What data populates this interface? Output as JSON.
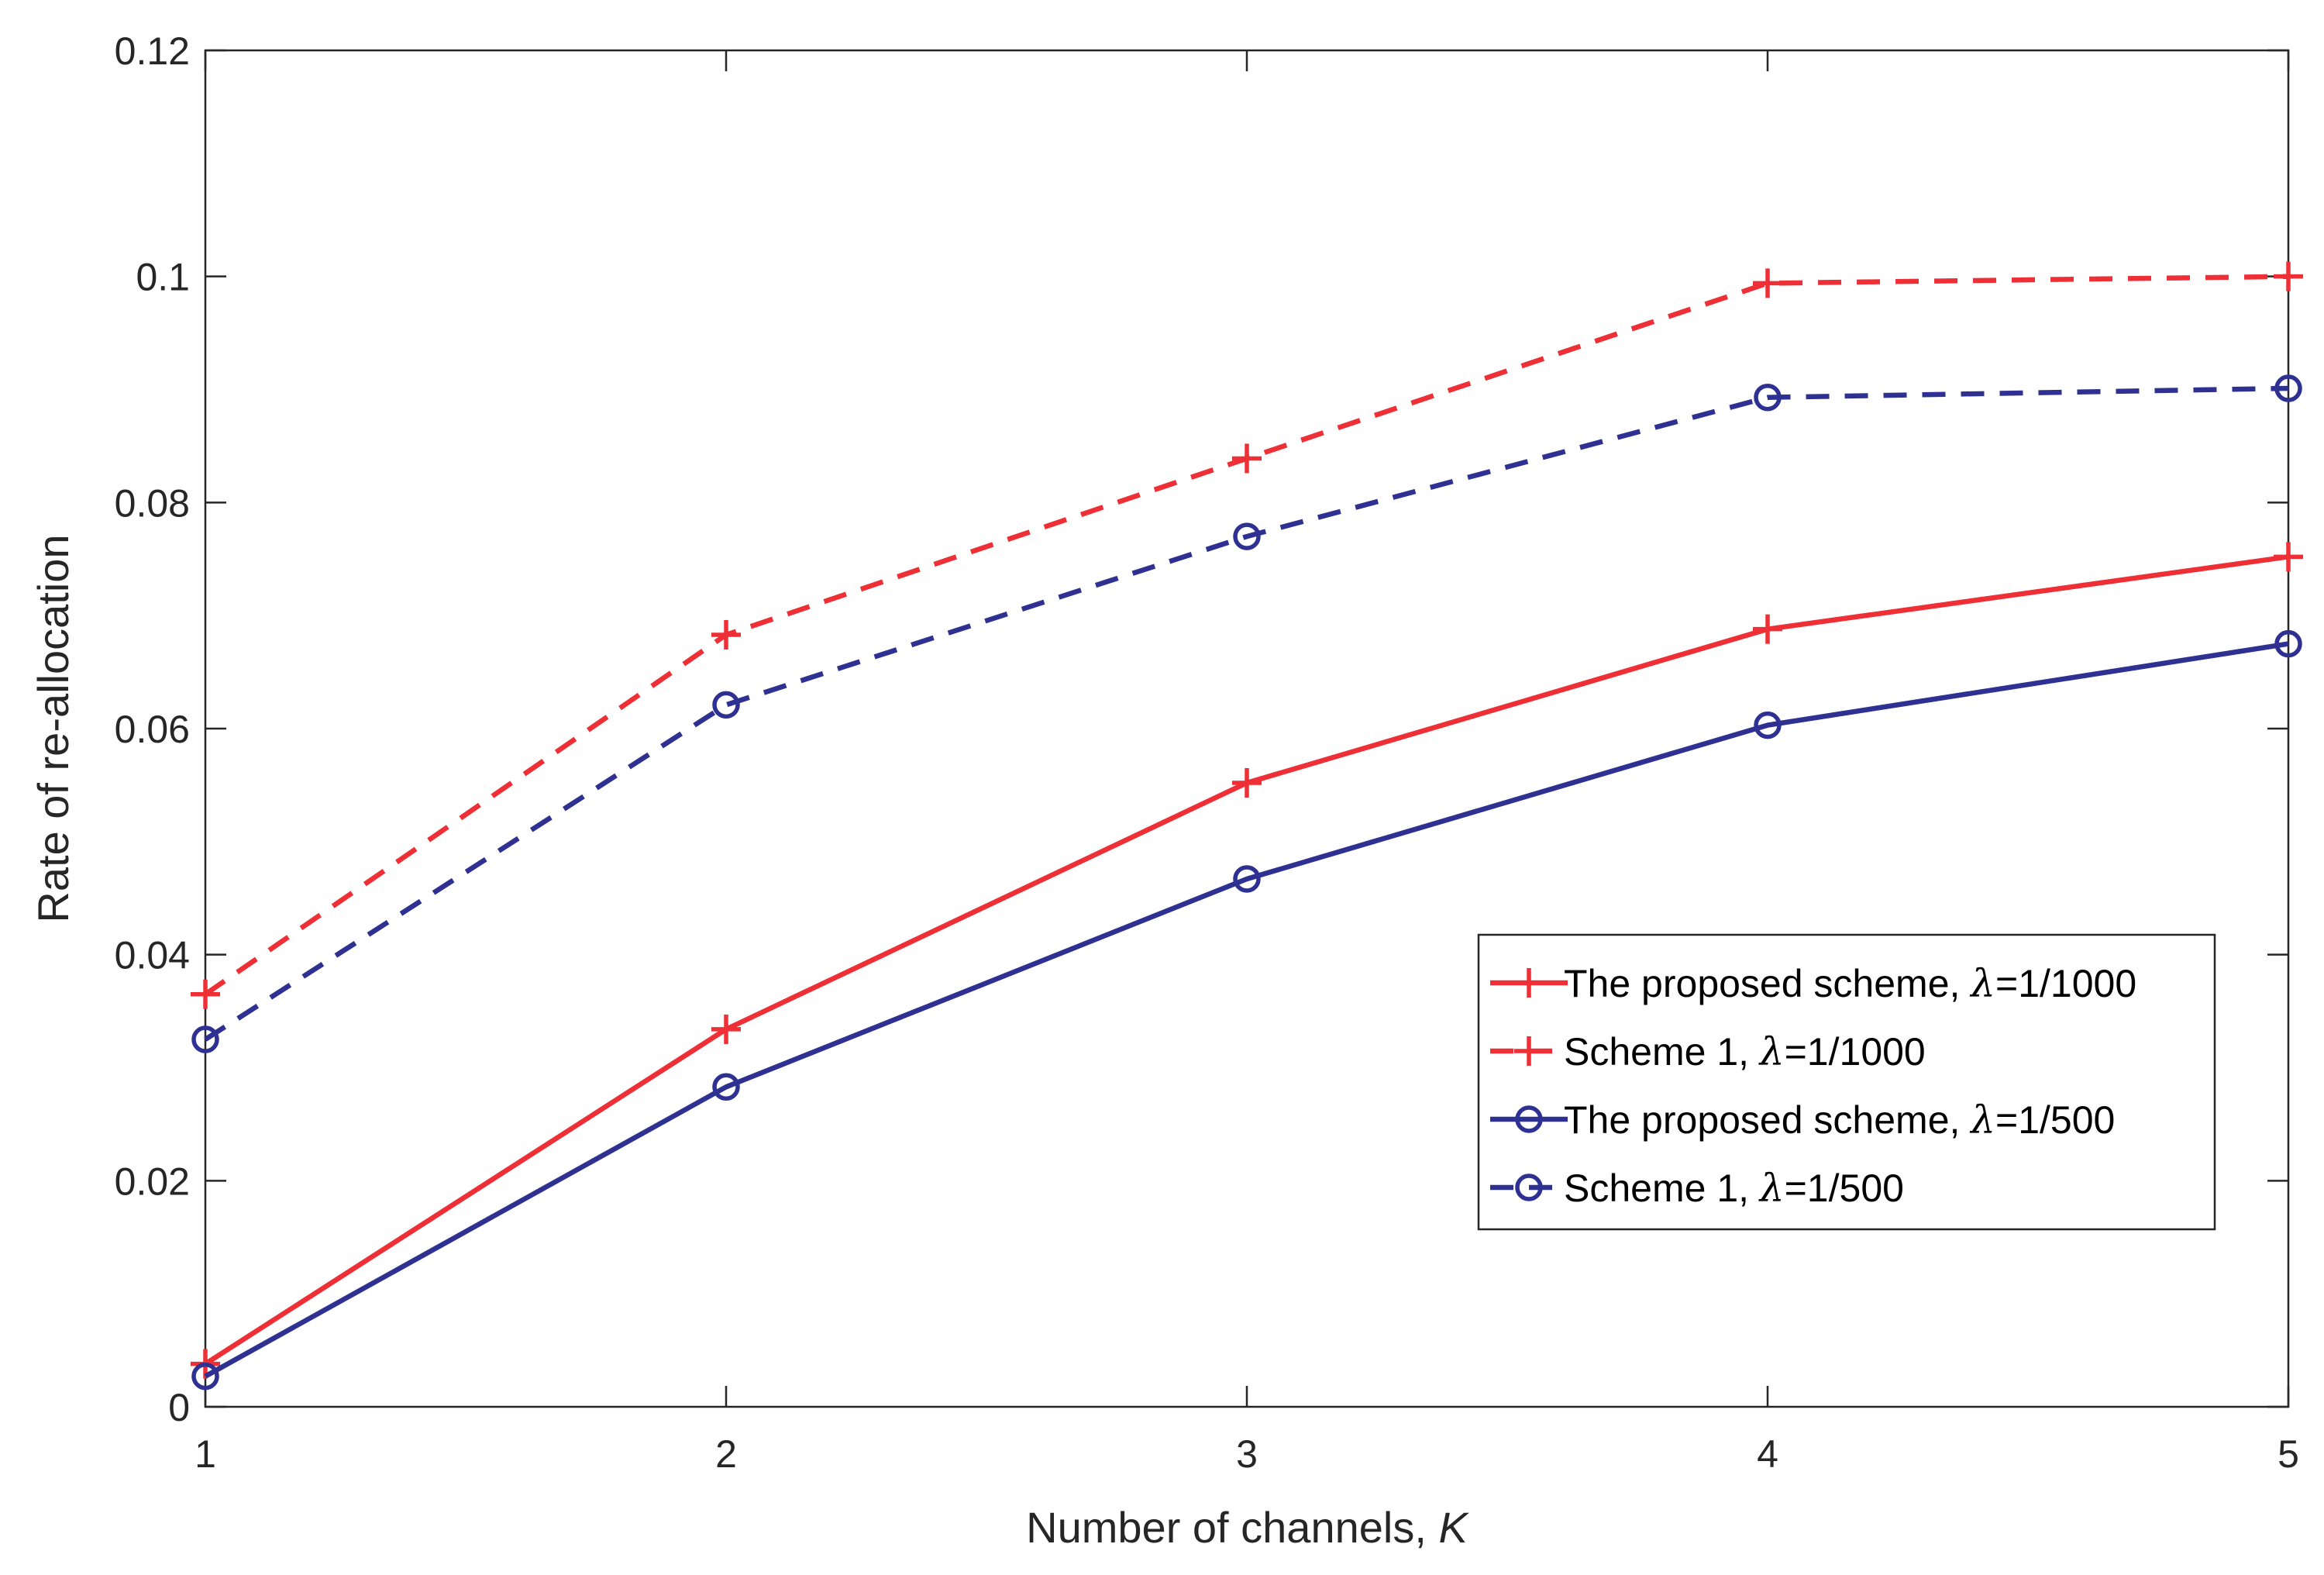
{
  "chart_data": {
    "type": "line",
    "title": "",
    "xlabel": "Number of channels, ",
    "xlabel_var": "K",
    "ylabel": "Rate of re-allocation",
    "x": [
      1,
      2,
      3,
      4,
      5
    ],
    "xlim": [
      1,
      5
    ],
    "ylim": [
      0,
      0.12
    ],
    "xticks": [
      1,
      2,
      3,
      4,
      5
    ],
    "xtick_labels": [
      "1",
      "2",
      "3",
      "4",
      "5"
    ],
    "yticks": [
      0,
      0.02,
      0.04,
      0.06,
      0.08,
      0.1,
      0.12
    ],
    "ytick_labels": [
      "0",
      "0.02",
      "0.04",
      "0.06",
      "0.08",
      "0.1",
      "0.12"
    ],
    "grid": false,
    "legend_position": "lower-right",
    "series": [
      {
        "name_prefix": "The proposed scheme, ",
        "name_symbol": "λ",
        "name_suffix": "=1/1000",
        "color": "#ee2f35",
        "line_style": "solid",
        "marker": "plus",
        "values": [
          0.0038,
          0.0334,
          0.0552,
          0.0688,
          0.0752
        ]
      },
      {
        "name_prefix": "Scheme 1, ",
        "name_symbol": "λ",
        "name_suffix": "=1/1000",
        "color": "#ee2f35",
        "line_style": "dashed",
        "marker": "plus",
        "values": [
          0.0365,
          0.0683,
          0.0839,
          0.0994,
          0.1
        ]
      },
      {
        "name_prefix": "The proposed scheme, ",
        "name_symbol": "λ",
        "name_suffix": "=1/500",
        "color": "#2e3191",
        "line_style": "solid",
        "marker": "circle",
        "values": [
          0.0027,
          0.0283,
          0.0467,
          0.0603,
          0.0675
        ]
      },
      {
        "name_prefix": "Scheme 1, ",
        "name_symbol": "λ",
        "name_suffix": "=1/500",
        "color": "#2e3191",
        "line_style": "dashed",
        "marker": "circle",
        "values": [
          0.0325,
          0.0621,
          0.077,
          0.0893,
          0.0901
        ]
      }
    ]
  }
}
